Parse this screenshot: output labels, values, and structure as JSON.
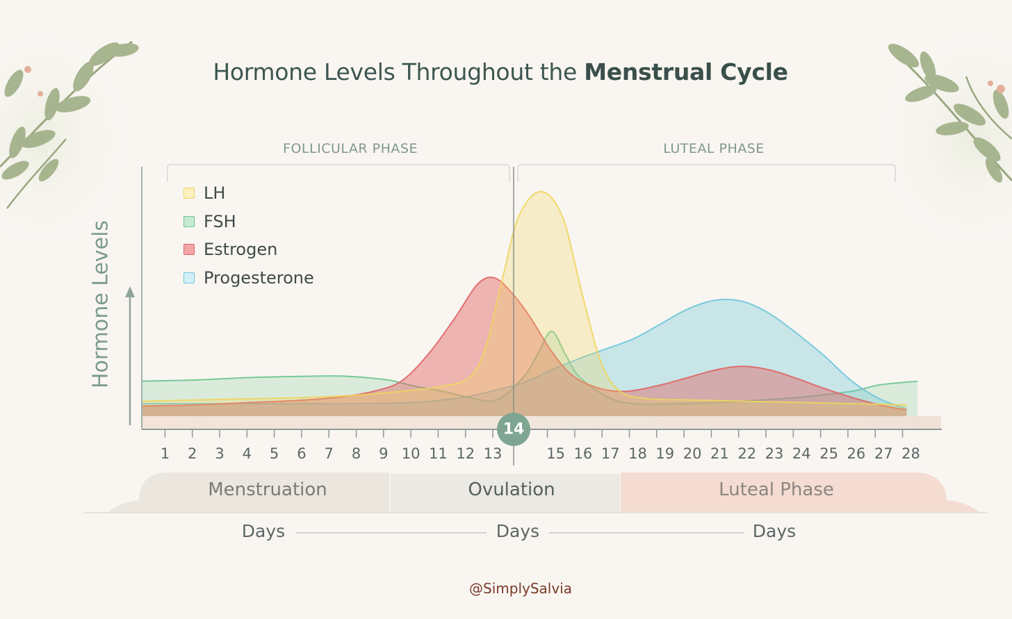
{
  "title": {
    "prefix": "Hormone Levels Throughout the ",
    "emphasis": "Menstrual Cycle"
  },
  "phases": {
    "follicular": "FOLLICULAR PHASE",
    "luteal": "LUTEAL PHASE"
  },
  "colors": {
    "lh": "#f0d55e",
    "fsh": "#6cc48e",
    "estrogen": "#e06464",
    "progesterone": "#6ec5d8",
    "axis": "#8fa59c",
    "ovulation_badge": "#7ea592"
  },
  "chart_data": {
    "type": "area",
    "title": "Hormone Levels Throughout the Menstrual Cycle",
    "ylabel": "Hormone Levels",
    "xlabel": "Days",
    "x_ticks": [
      1,
      2,
      3,
      4,
      5,
      6,
      7,
      8,
      9,
      10,
      11,
      12,
      13,
      15,
      16,
      17,
      18,
      19,
      20,
      21,
      22,
      23,
      24,
      25,
      26,
      27,
      28
    ],
    "highlighted_day": "14",
    "xlim": [
      0,
      28.4
    ],
    "ylim": [
      0,
      100
    ],
    "legend_position": "top-left",
    "grid": false,
    "series": [
      {
        "name": "LH",
        "key": "lh",
        "points": [
          [
            0,
            6
          ],
          [
            2,
            6.5
          ],
          [
            4,
            7
          ],
          [
            6,
            7.5
          ],
          [
            8,
            8.5
          ],
          [
            10,
            10.5
          ],
          [
            11,
            12
          ],
          [
            12,
            15.5
          ],
          [
            12.6,
            28
          ],
          [
            13.2,
            55
          ],
          [
            13.8,
            80
          ],
          [
            14.6,
            90
          ],
          [
            15.4,
            80
          ],
          [
            16.1,
            50
          ],
          [
            16.8,
            22
          ],
          [
            17.5,
            10
          ],
          [
            18.5,
            7
          ],
          [
            20,
            6.5
          ],
          [
            22,
            6
          ],
          [
            24,
            5.5
          ],
          [
            26,
            5
          ],
          [
            28,
            4.5
          ]
        ]
      },
      {
        "name": "FSH",
        "key": "fsh",
        "points": [
          [
            0,
            14
          ],
          [
            2,
            14.5
          ],
          [
            4,
            15.5
          ],
          [
            6,
            16
          ],
          [
            7.5,
            16
          ],
          [
            9,
            14.5
          ],
          [
            10,
            12
          ],
          [
            11,
            10
          ],
          [
            12,
            7.5
          ],
          [
            13,
            6.5
          ],
          [
            14,
            16
          ],
          [
            14.5,
            25
          ],
          [
            15,
            34
          ],
          [
            15.5,
            25
          ],
          [
            16,
            16
          ],
          [
            17,
            8
          ],
          [
            18,
            5
          ],
          [
            20,
            5
          ],
          [
            22,
            6
          ],
          [
            24,
            7.5
          ],
          [
            26,
            10
          ],
          [
            27,
            12.5
          ],
          [
            28.4,
            14
          ]
        ]
      },
      {
        "name": "Estrogen",
        "key": "estrogen",
        "points": [
          [
            0,
            4
          ],
          [
            2,
            4.5
          ],
          [
            4,
            5.5
          ],
          [
            6,
            6.5
          ],
          [
            7.5,
            8
          ],
          [
            8.5,
            10
          ],
          [
            9.5,
            14
          ],
          [
            10.5,
            25
          ],
          [
            11.5,
            40
          ],
          [
            12.3,
            53
          ],
          [
            12.9,
            55.5
          ],
          [
            13.5,
            50
          ],
          [
            14.2,
            40
          ],
          [
            15,
            26
          ],
          [
            15.8,
            16
          ],
          [
            16.8,
            11
          ],
          [
            17.8,
            10
          ],
          [
            19,
            12.5
          ],
          [
            20,
            15.5
          ],
          [
            21,
            18.5
          ],
          [
            22,
            20
          ],
          [
            23,
            18.5
          ],
          [
            24,
            15
          ],
          [
            25,
            11
          ],
          [
            26,
            7.5
          ],
          [
            27,
            4.5
          ],
          [
            28,
            2.5
          ]
        ]
      },
      {
        "name": "Progesterone",
        "key": "progesterone",
        "points": [
          [
            0,
            5
          ],
          [
            4,
            5
          ],
          [
            8,
            5
          ],
          [
            10,
            5.5
          ],
          [
            11,
            6.5
          ],
          [
            12,
            8
          ],
          [
            13,
            10.5
          ],
          [
            14,
            13.5
          ],
          [
            15,
            18.5
          ],
          [
            16,
            23
          ],
          [
            17,
            27
          ],
          [
            18,
            31
          ],
          [
            19,
            37
          ],
          [
            20,
            43
          ],
          [
            21,
            46.5
          ],
          [
            22,
            46
          ],
          [
            23,
            41
          ],
          [
            24,
            33
          ],
          [
            25,
            24
          ],
          [
            26,
            14
          ],
          [
            27,
            7
          ],
          [
            28,
            3
          ]
        ]
      }
    ]
  },
  "bottom_bands": [
    {
      "label": "Menstruation",
      "color": "#ebe6de",
      "text_color": "#7d7a74"
    },
    {
      "label": "Ovulation",
      "color": "#ebe9e4",
      "text_color": "#55605d"
    },
    {
      "label": "Luteal Phase",
      "color": "#f4dcd2",
      "text_color": "#8c8680"
    }
  ],
  "days_labels": [
    "Days",
    "Days",
    "Days"
  ],
  "credit": "@SimplySalvia"
}
